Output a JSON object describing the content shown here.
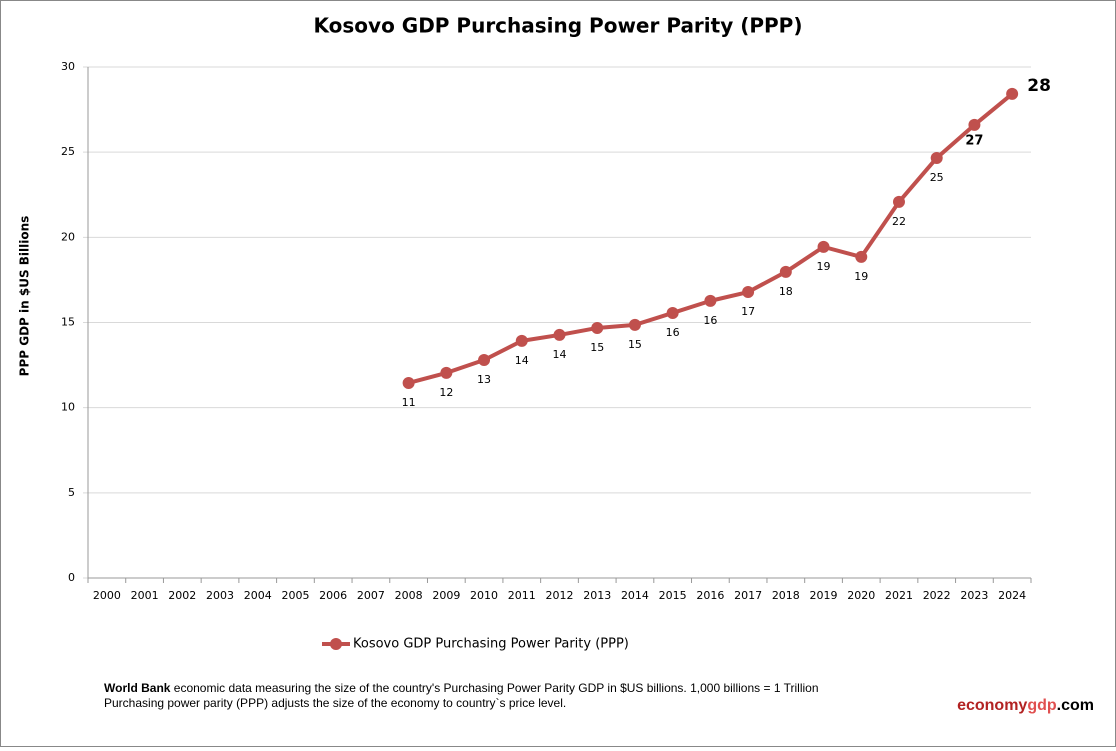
{
  "chart_data": {
    "type": "line",
    "title": "Kosovo GDP Purchasing Power Parity (PPP)",
    "y_label": "PPP GDP in $US Billions",
    "categories": [
      "2000",
      "2001",
      "2002",
      "2003",
      "2004",
      "2005",
      "2006",
      "2007",
      "2008",
      "2009",
      "2010",
      "2011",
      "2012",
      "2013",
      "2014",
      "2015",
      "2016",
      "2017",
      "2018",
      "2019",
      "2020",
      "2021",
      "2022",
      "2023",
      "2024"
    ],
    "series": [
      {
        "name": "Kosovo GDP Purchasing Power Parity (PPP)",
        "color": "#c0504d",
        "values": [
          null,
          null,
          null,
          null,
          null,
          null,
          null,
          null,
          11.45,
          12.04,
          12.8,
          13.92,
          14.27,
          14.68,
          14.86,
          15.56,
          16.27,
          16.79,
          17.97,
          19.44,
          18.85,
          22.08,
          24.66,
          26.6,
          28.42
        ],
        "value_labels": [
          null,
          null,
          null,
          null,
          null,
          null,
          null,
          null,
          "11",
          "12",
          "13",
          "14",
          "14",
          "15",
          "15",
          "16",
          "16",
          "17",
          "18",
          "19",
          "19",
          "22",
          "25",
          "27",
          "28"
        ]
      }
    ],
    "ylim": [
      0,
      30
    ],
    "yticks": [
      0,
      5,
      10,
      15,
      20,
      25,
      30
    ],
    "grid": true,
    "legend": "bottom"
  },
  "footer": {
    "source": "World Bank",
    "line1": " economic data  measuring the size of the country's Purchasing Power Parity GDP in $US billions. 1,000 billions = 1 Trillion",
    "line2": "Purchasing power parity (PPP) adjusts the size of the economy to country`s price level."
  },
  "brand": [
    "economy",
    "gdp",
    ".com"
  ]
}
